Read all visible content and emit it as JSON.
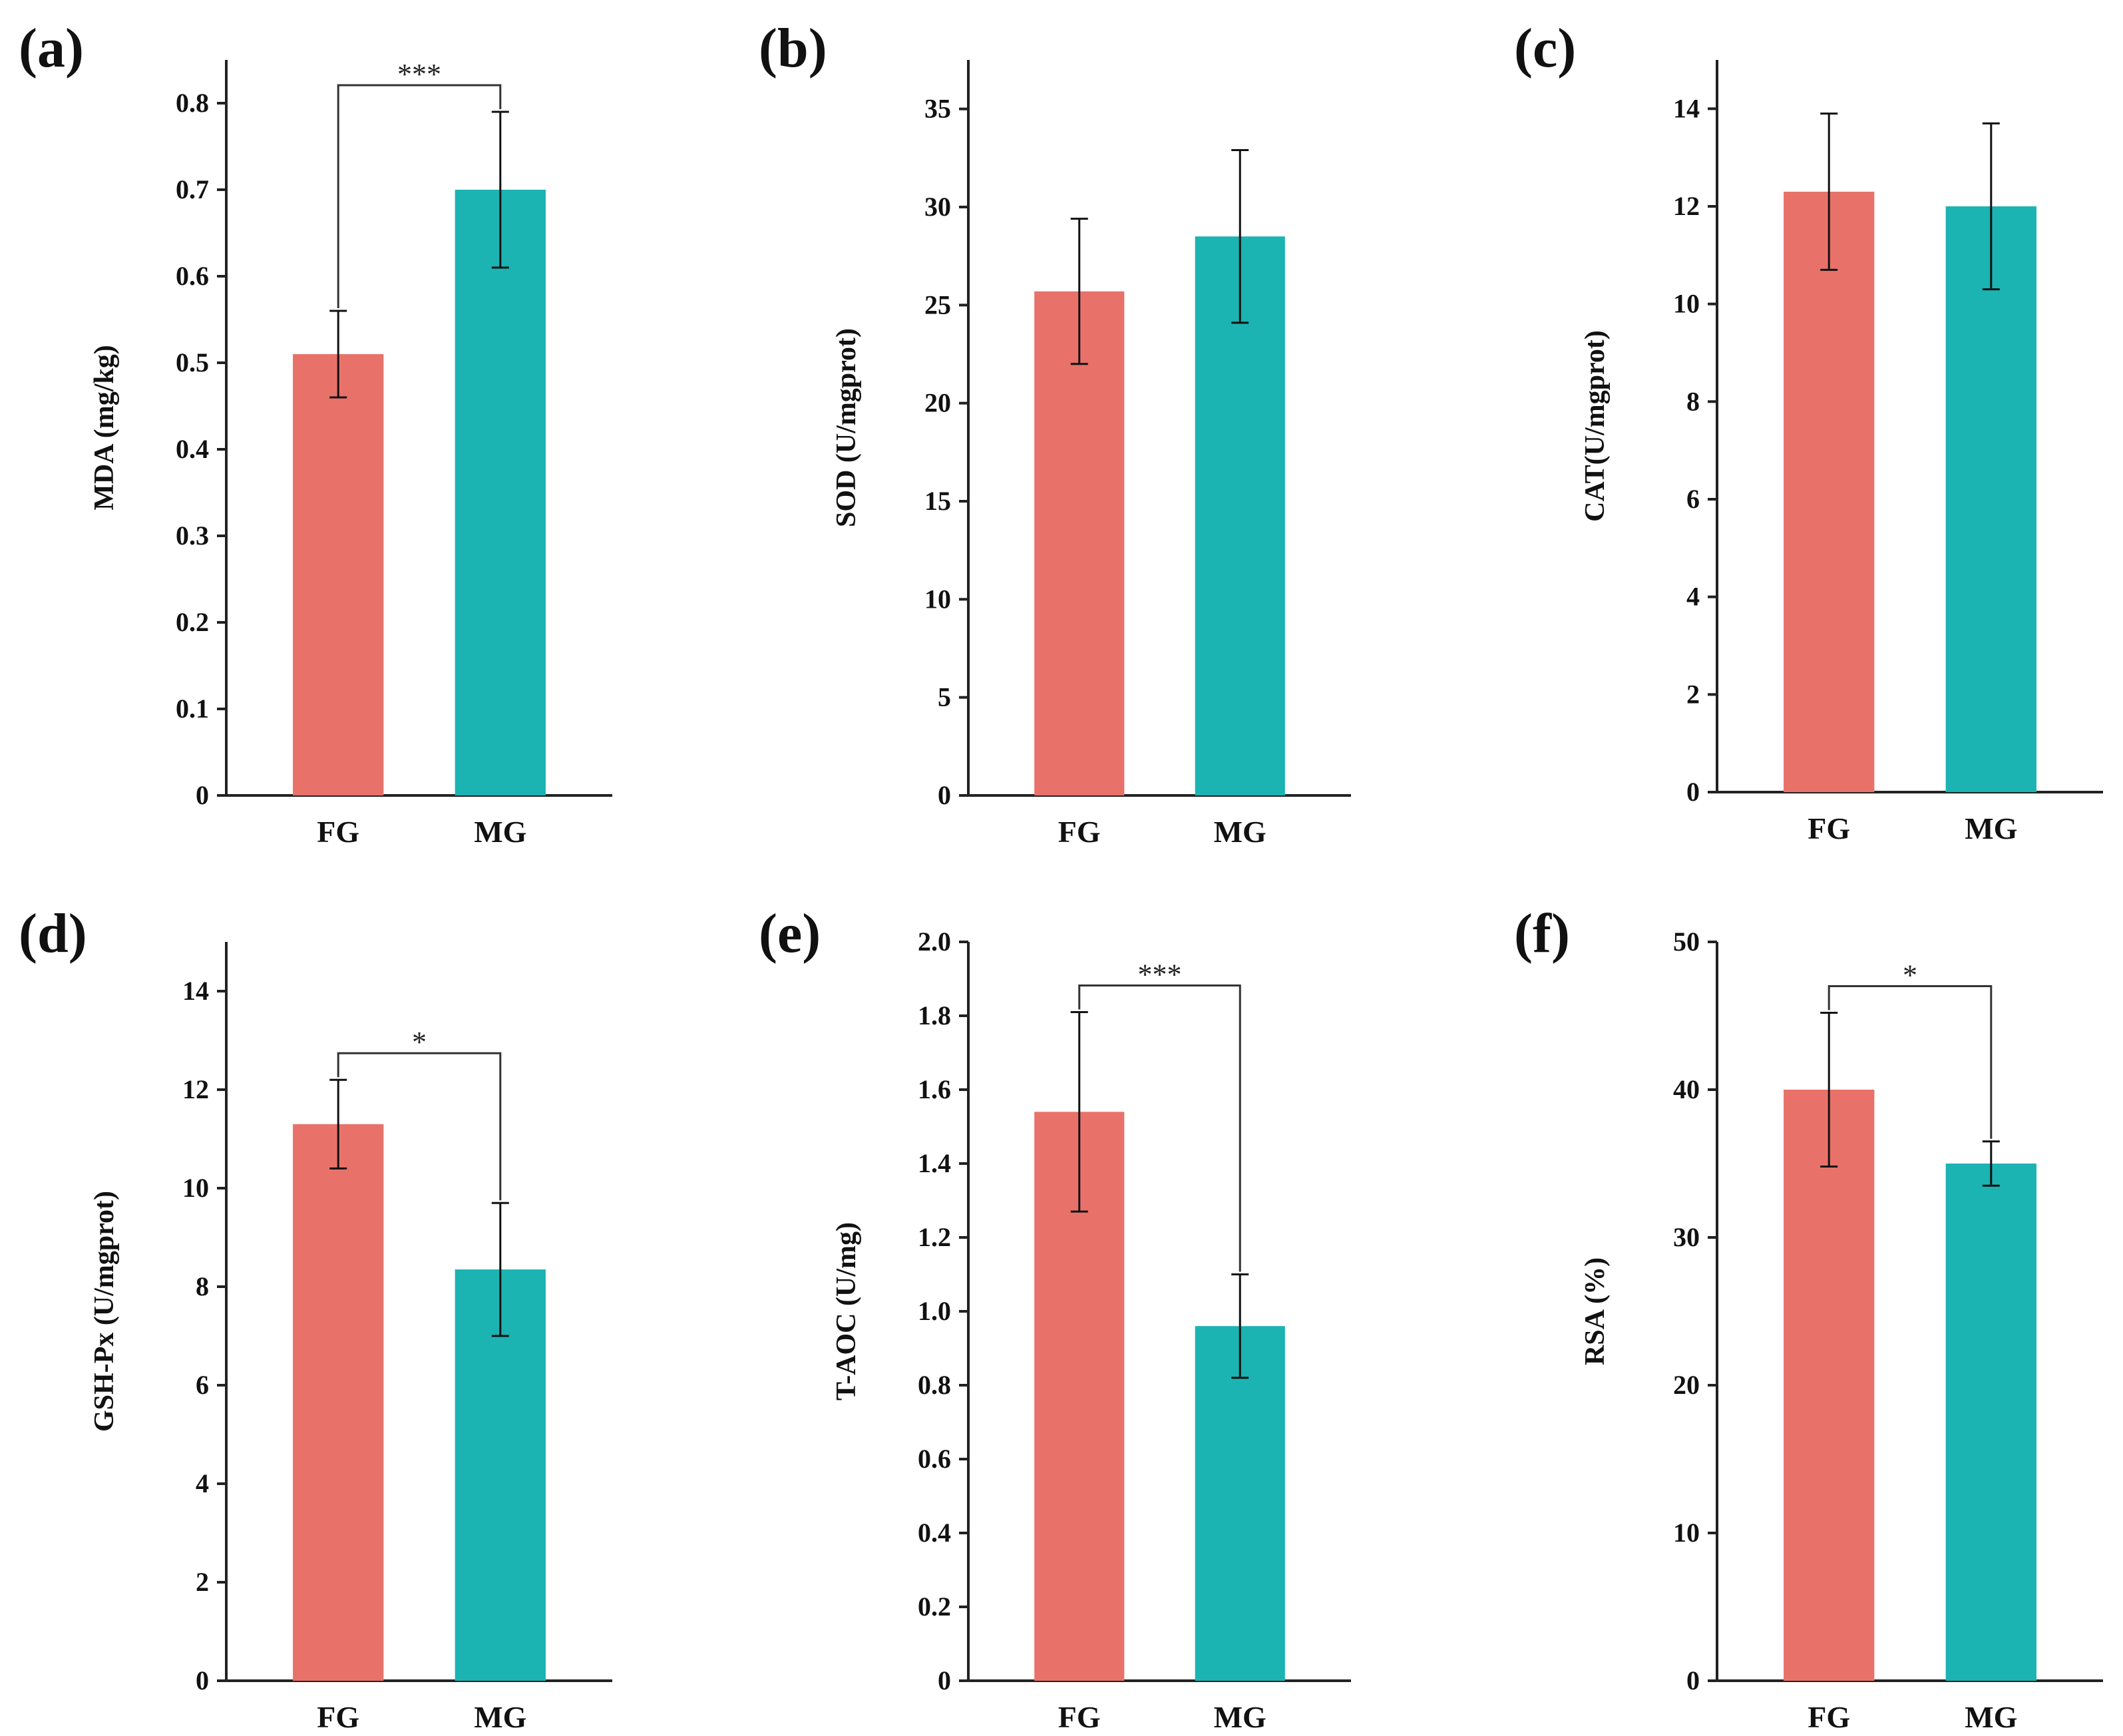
{
  "colors": {
    "FG": "#E8726A",
    "MG": "#1CB3B3",
    "axis": "#222222"
  },
  "chart_data": [
    {
      "type": "bar",
      "panel": "(a)",
      "categories": [
        "FG",
        "MG"
      ],
      "values": [
        0.51,
        0.7
      ],
      "errors": [
        0.05,
        0.09
      ],
      "ylabel": "MDA (mg/kg)",
      "ylim": [
        0,
        0.85
      ],
      "yticks": [
        0,
        0.1,
        0.2,
        0.3,
        0.4,
        0.5,
        0.6,
        0.7,
        0.8
      ],
      "ytick_labels": [
        "0",
        "0.1",
        "0.2",
        "0.3",
        "0.4",
        "0.5",
        "0.6",
        "0.7",
        "0.8"
      ],
      "significance": "***",
      "grid": false
    },
    {
      "type": "bar",
      "panel": "(b)",
      "categories": [
        "FG",
        "MG"
      ],
      "values": [
        25.7,
        28.5
      ],
      "errors": [
        3.7,
        4.4
      ],
      "ylabel": "SOD (U/mgprot)",
      "ylim": [
        0,
        37.5
      ],
      "yticks": [
        0,
        5,
        10,
        15,
        20,
        25,
        30,
        35
      ],
      "ytick_labels": [
        "0",
        "5",
        "10",
        "15",
        "20",
        "25",
        "30",
        "35"
      ],
      "significance": "",
      "grid": false
    },
    {
      "type": "bar",
      "panel": "(c)",
      "categories": [
        "FG",
        "MG"
      ],
      "values": [
        12.3,
        12.0
      ],
      "errors": [
        1.6,
        1.7
      ],
      "ylabel": "CAT(U/mgprot)",
      "ylim": [
        0,
        15
      ],
      "yticks": [
        0,
        2,
        4,
        6,
        8,
        10,
        12,
        14
      ],
      "ytick_labels": [
        "0",
        "2",
        "4",
        "6",
        "8",
        "10",
        "12",
        "14"
      ],
      "significance": "",
      "grid": false
    },
    {
      "type": "bar",
      "panel": "(d)",
      "categories": [
        "FG",
        "MG"
      ],
      "values": [
        11.3,
        8.35
      ],
      "errors": [
        0.9,
        1.35
      ],
      "ylabel": "GSH-Px (U/mgprot)",
      "ylim": [
        0,
        15
      ],
      "yticks": [
        0,
        2,
        4,
        6,
        8,
        10,
        12,
        14
      ],
      "ytick_labels": [
        "0",
        "2",
        "4",
        "6",
        "8",
        "10",
        "12",
        "14"
      ],
      "significance": "*",
      "grid": false
    },
    {
      "type": "bar",
      "panel": "(e)",
      "categories": [
        "FG",
        "MG"
      ],
      "values": [
        1.54,
        0.96
      ],
      "errors": [
        0.27,
        0.14
      ],
      "ylabel": "T-AOC (U/mg)",
      "ylim": [
        0,
        2.0
      ],
      "yticks": [
        0,
        0.2,
        0.4,
        0.6,
        0.8,
        1.0,
        1.2,
        1.4,
        1.6,
        1.8,
        2.0
      ],
      "ytick_labels": [
        "0",
        "0.2",
        "0.4",
        "0.6",
        "0.8",
        "1.0",
        "1.2",
        "1.4",
        "1.6",
        "1.8",
        "2.0"
      ],
      "significance": "***",
      "grid": false
    },
    {
      "type": "bar",
      "panel": "(f)",
      "categories": [
        "FG",
        "MG"
      ],
      "values": [
        40.0,
        35.0
      ],
      "errors": [
        5.2,
        1.5
      ],
      "ylabel": "RSA (%)",
      "ylim": [
        0,
        50
      ],
      "yticks": [
        0,
        10,
        20,
        30,
        40,
        50
      ],
      "ytick_labels": [
        "0",
        "10",
        "20",
        "30",
        "40",
        "50"
      ],
      "significance": "*",
      "grid": false
    }
  ]
}
